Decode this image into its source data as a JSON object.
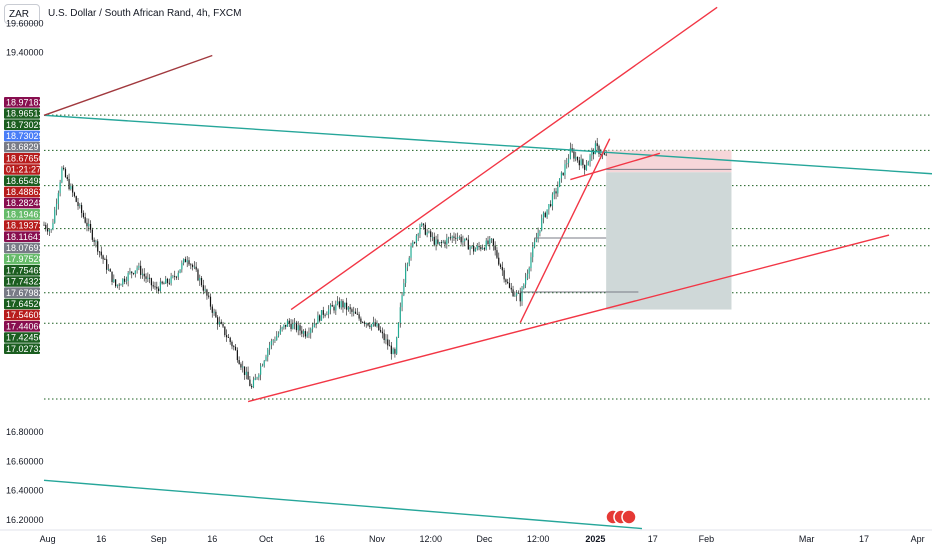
{
  "header": {
    "symbol": "ZAR",
    "title": "U.S. Dollar / South African Rand, 4h, FXCM"
  },
  "chart_data": {
    "type": "candlestick",
    "ylim": [
      16.13,
      19.76
    ],
    "xlim": [
      "2024-07-31",
      "2025-04-05"
    ],
    "y_ticks": [
      "19.60000",
      "19.40000",
      "16.80000",
      "16.60000",
      "16.40000",
      "16.20000"
    ],
    "x_ticks": [
      {
        "label": "Aug",
        "date": "2024-08-01"
      },
      {
        "label": "16",
        "date": "2024-08-16"
      },
      {
        "label": "Sep",
        "date": "2024-09-01"
      },
      {
        "label": "16",
        "date": "2024-09-16"
      },
      {
        "label": "Oct",
        "date": "2024-10-01"
      },
      {
        "label": "16",
        "date": "2024-10-16"
      },
      {
        "label": "Nov",
        "date": "2024-11-01"
      },
      {
        "label": "12:00",
        "date": "2024-11-16"
      },
      {
        "label": "Dec",
        "date": "2024-12-01"
      },
      {
        "label": "12:00",
        "date": "2024-12-16"
      },
      {
        "label": "2025",
        "date": "2025-01-01"
      },
      {
        "label": "17",
        "date": "2025-01-17"
      },
      {
        "label": "Feb",
        "date": "2025-02-01"
      },
      {
        "label": "Mar",
        "date": "2025-03-01"
      },
      {
        "label": "17",
        "date": "2025-03-17"
      },
      {
        "label": "Apr",
        "date": "2025-04-01"
      }
    ],
    "price_badges": [
      {
        "text": "18.97182",
        "value": 18.97182,
        "color": "#880e4f"
      },
      {
        "text": "18.96513",
        "value": 18.96513,
        "color": "#1b5e20"
      },
      {
        "text": "18.73029",
        "value": 18.73029,
        "color": "#1b5e20"
      },
      {
        "text": "18.73029",
        "value": 18.73029,
        "color": "#4a7ef7"
      },
      {
        "text": "18.68297",
        "value": 18.68297,
        "color": "#787b86"
      },
      {
        "text": "18.67650",
        "value": 18.6765,
        "color": "#b71c1c"
      },
      {
        "text": "01:21:27",
        "value": null,
        "color": "#b71c1c"
      },
      {
        "text": "18.65498",
        "value": 18.65498,
        "color": "#1b5e20"
      },
      {
        "text": "18.48862",
        "value": 18.48862,
        "color": "#b71c1c"
      },
      {
        "text": "18.28248",
        "value": 18.28248,
        "color": "#880e4f"
      },
      {
        "text": "18.19461",
        "value": 18.19461,
        "color": "#66bb6a"
      },
      {
        "text": "18.19373",
        "value": 18.19373,
        "color": "#b71c1c"
      },
      {
        "text": "18.11641",
        "value": 18.11641,
        "color": "#880e4f"
      },
      {
        "text": "18.07693",
        "value": 18.07693,
        "color": "#787b86"
      },
      {
        "text": "17.97528",
        "value": 17.97528,
        "color": "#66bb6a"
      },
      {
        "text": "17.75465",
        "value": 17.75465,
        "color": "#1b5e20"
      },
      {
        "text": "17.74323",
        "value": 17.74323,
        "color": "#1b5e20"
      },
      {
        "text": "17.67982",
        "value": 17.67982,
        "color": "#787b86"
      },
      {
        "text": "17.64526",
        "value": 17.64526,
        "color": "#1b5e20"
      },
      {
        "text": "17.54605",
        "value": 17.54605,
        "color": "#b71c1c"
      },
      {
        "text": "17.44066",
        "value": 17.44066,
        "color": "#880e4f"
      },
      {
        "text": "17.42456",
        "value": 17.42456,
        "color": "#1b5e20"
      },
      {
        "text": "17.02732",
        "value": 17.02732,
        "color": "#1b5e20"
      }
    ],
    "dotted_levels": [
      18.97182,
      18.73029,
      18.48862,
      18.19373,
      18.07693,
      17.75465,
      17.54605,
      17.02732
    ],
    "path_points": [
      {
        "date": "2024-07-31",
        "value": 18.22
      },
      {
        "date": "2024-08-02",
        "value": 18.18
      },
      {
        "date": "2024-08-05",
        "value": 18.6
      },
      {
        "date": "2024-08-09",
        "value": 18.38
      },
      {
        "date": "2024-08-14",
        "value": 18.12
      },
      {
        "date": "2024-08-20",
        "value": 17.8
      },
      {
        "date": "2024-08-26",
        "value": 17.93
      },
      {
        "date": "2024-08-31",
        "value": 17.78
      },
      {
        "date": "2024-09-05",
        "value": 17.85
      },
      {
        "date": "2024-09-09",
        "value": 18.0
      },
      {
        "date": "2024-09-13",
        "value": 17.82
      },
      {
        "date": "2024-09-17",
        "value": 17.58
      },
      {
        "date": "2024-09-22",
        "value": 17.38
      },
      {
        "date": "2024-09-27",
        "value": 17.1
      },
      {
        "date": "2024-10-02",
        "value": 17.4
      },
      {
        "date": "2024-10-07",
        "value": 17.55
      },
      {
        "date": "2024-10-12",
        "value": 17.48
      },
      {
        "date": "2024-10-17",
        "value": 17.62
      },
      {
        "date": "2024-10-22",
        "value": 17.68
      },
      {
        "date": "2024-10-27",
        "value": 17.58
      },
      {
        "date": "2024-11-01",
        "value": 17.52
      },
      {
        "date": "2024-11-06",
        "value": 17.32
      },
      {
        "date": "2024-11-09",
        "value": 17.95
      },
      {
        "date": "2024-11-13",
        "value": 18.22
      },
      {
        "date": "2024-11-18",
        "value": 18.08
      },
      {
        "date": "2024-11-23",
        "value": 18.15
      },
      {
        "date": "2024-11-28",
        "value": 18.05
      },
      {
        "date": "2024-12-03",
        "value": 18.1
      },
      {
        "date": "2024-12-08",
        "value": 17.78
      },
      {
        "date": "2024-12-11",
        "value": 17.72
      },
      {
        "date": "2024-12-14",
        "value": 18.0
      },
      {
        "date": "2024-12-17",
        "value": 18.25
      },
      {
        "date": "2024-12-21",
        "value": 18.45
      },
      {
        "date": "2024-12-25",
        "value": 18.72
      },
      {
        "date": "2024-12-29",
        "value": 18.62
      },
      {
        "date": "2025-01-01",
        "value": 18.75
      },
      {
        "date": "2025-01-04",
        "value": 18.68
      }
    ],
    "trend_lines": [
      {
        "kind": "teal",
        "from": {
          "date": "2024-07-31",
          "value": 18.97
        },
        "to": {
          "date": "2025-04-05",
          "value": 18.57
        }
      },
      {
        "kind": "teal",
        "from": {
          "date": "2024-07-31",
          "value": 16.47
        },
        "to": {
          "date": "2025-01-14",
          "value": 16.14
        }
      },
      {
        "kind": "red",
        "from": {
          "date": "2024-09-26",
          "value": 17.01
        },
        "to": {
          "date": "2025-03-24",
          "value": 18.15
        }
      },
      {
        "kind": "red",
        "from": {
          "date": "2024-10-08",
          "value": 17.64
        },
        "to": {
          "date": "2025-02-04",
          "value": 19.71
        }
      },
      {
        "kind": "red",
        "from": {
          "date": "2024-12-11",
          "value": 17.55
        },
        "to": {
          "date": "2025-01-05",
          "value": 18.81
        }
      },
      {
        "kind": "red",
        "from": {
          "date": "2024-12-25",
          "value": 18.53
        },
        "to": {
          "date": "2025-01-19",
          "value": 18.71
        }
      },
      {
        "kind": "brown",
        "from": {
          "date": "2024-07-31",
          "value": 18.97
        },
        "to": {
          "date": "2024-09-16",
          "value": 19.38
        }
      }
    ],
    "horizontal_segments": [
      {
        "value": 18.13,
        "from": "2024-12-15",
        "to": "2025-01-04"
      },
      {
        "value": 17.76,
        "from": "2024-12-11",
        "to": "2025-01-13"
      },
      {
        "value": 18.6,
        "from": "2025-01-04",
        "to": "2025-02-08"
      }
    ],
    "position_tool": {
      "start": "2025-01-04",
      "end": "2025-02-08",
      "entry": 18.58,
      "stop": 18.73,
      "target": 17.64,
      "loss_color": "#f6d6d9",
      "profit_color": "#cfd8d8"
    },
    "colors": {
      "up": "#22ab94",
      "down": "#111111",
      "wick": "#333333",
      "red_line": "#f23645",
      "teal_line": "#26a69a",
      "brown_line": "#a1393e",
      "grid_dots": "#1b5e20"
    }
  }
}
